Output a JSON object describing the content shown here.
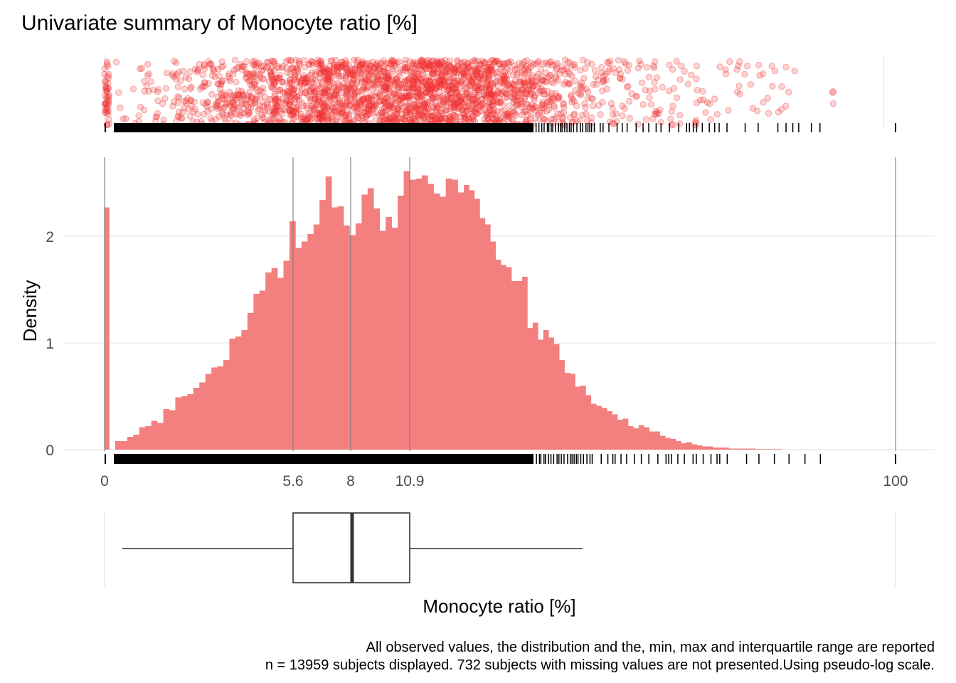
{
  "colors": {
    "accent": "#f03030",
    "bar_fill": "#f37f7f",
    "grid": "#ebebeb",
    "ref_line": "#7f7f7f",
    "box_stroke": "#333333"
  },
  "chart_data": {
    "type": "bar",
    "title": "Univariate summary of Monocyte ratio [%]",
    "xlabel": "Monocyte ratio [%]",
    "ylabel": "Density",
    "x_scale": "pseudo-log",
    "x_ticks": [
      "0",
      "5.6",
      "8",
      "10.9",
      "100"
    ],
    "xlim": [
      0,
      100
    ],
    "ylim": [
      0,
      2.65
    ],
    "y_ticks": [
      "0",
      "1",
      "2"
    ],
    "grid": true,
    "reference_lines": [
      0,
      5.6,
      8,
      10.9,
      100
    ],
    "summary": {
      "min": 0.2,
      "q1": 5.6,
      "median": 8,
      "q3": 10.9,
      "max": 24.5
    },
    "histogram": {
      "bin_start": [
        0,
        0.2,
        0.4,
        0.6,
        0.8,
        1.0,
        1.2,
        1.4,
        1.6,
        1.8,
        2.0,
        2.2,
        2.4,
        2.6,
        2.8,
        3.0,
        3.2,
        3.4,
        3.6,
        3.8,
        4.0,
        4.2,
        4.4,
        4.6,
        4.8,
        5.0,
        5.2,
        5.4,
        5.6,
        5.8,
        6.0,
        6.2,
        6.4,
        6.6,
        6.8,
        7.0,
        7.2,
        7.4,
        7.6,
        7.8,
        8.0,
        8.2,
        8.4,
        8.6,
        8.8,
        9.0,
        9.2,
        9.4,
        9.6,
        9.8,
        10.0,
        10.2,
        10.4,
        10.6,
        10.8,
        11.0,
        11.2,
        11.4,
        11.6,
        11.8,
        12.0,
        12.2,
        12.4,
        12.6,
        12.8,
        13.0,
        13.2,
        13.4,
        13.6,
        13.8,
        14.0,
        14.2,
        14.4,
        14.6,
        14.8,
        15.0,
        15.2,
        15.4,
        15.6,
        15.8,
        16.0,
        16.2,
        16.4,
        16.6,
        16.8,
        17.0,
        17.2,
        17.4,
        17.6,
        17.8,
        18.0,
        18.2,
        18.4,
        18.6,
        18.8,
        19.0,
        19.2,
        19.4,
        19.6,
        19.8,
        20.0,
        20.2,
        20.4,
        20.6,
        20.8,
        21.0,
        21.2,
        21.4,
        21.6,
        21.8,
        22.0,
        22.2,
        22.4,
        22.6,
        22.8,
        23.0,
        23.2,
        23.4,
        23.6,
        23.8
      ],
      "density": [
        2.27,
        0.0,
        0.08,
        0.08,
        0.12,
        0.14,
        0.21,
        0.22,
        0.27,
        0.25,
        0.38,
        0.37,
        0.49,
        0.5,
        0.52,
        0.58,
        0.63,
        0.71,
        0.77,
        0.78,
        0.84,
        1.04,
        1.06,
        1.12,
        1.28,
        1.46,
        1.49,
        1.66,
        1.7,
        1.61,
        1.77,
        2.14,
        1.89,
        1.95,
        2.02,
        2.11,
        2.34,
        2.56,
        2.27,
        2.28,
        2.1,
        2.01,
        2.12,
        2.39,
        2.45,
        2.26,
        2.05,
        2.18,
        2.08,
        2.38,
        2.61,
        2.53,
        2.54,
        2.57,
        2.49,
        2.4,
        2.37,
        2.54,
        2.53,
        2.41,
        2.48,
        2.43,
        2.35,
        2.17,
        2.11,
        1.95,
        1.78,
        1.73,
        1.71,
        1.58,
        1.58,
        1.62,
        1.14,
        1.19,
        1.03,
        1.12,
        1.05,
        0.99,
        0.84,
        0.72,
        0.71,
        0.59,
        0.6,
        0.51,
        0.43,
        0.41,
        0.39,
        0.36,
        0.33,
        0.28,
        0.29,
        0.22,
        0.2,
        0.23,
        0.21,
        0.17,
        0.17,
        0.13,
        0.11,
        0.1,
        0.08,
        0.06,
        0.07,
        0.05,
        0.04,
        0.03,
        0.03,
        0.02,
        0.02,
        0.02,
        0.01,
        0.01,
        0.01,
        0.01,
        0.01,
        0.005,
        0.005,
        0.005,
        0.005,
        0.005
      ]
    },
    "caption": [
      "All observed values, the distribution and the, min, max and interquartile range are reported",
      "n = 13959 subjects displayed. 732 subjects with missing values are not presented.Using pseudo-log scale."
    ]
  }
}
